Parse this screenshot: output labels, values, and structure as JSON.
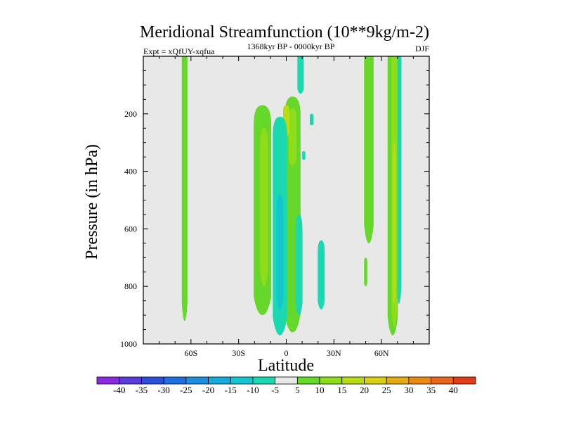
{
  "chart_data": {
    "type": "contour",
    "title": "Meridional Streamfunction (10**9kg/m-2)",
    "subtitle_left": "Expt = xQfUY-xqfua",
    "subtitle_center": "1368kyr BP - 0000kyr BP",
    "subtitle_right": "DJF",
    "xlabel": "Latitude",
    "ylabel": "Pressure (in hPa)",
    "xlim": [
      -90,
      90
    ],
    "ylim": [
      1000,
      0
    ],
    "x_ticks": [
      {
        "value": -60,
        "label": "60S"
      },
      {
        "value": -30,
        "label": "30S"
      },
      {
        "value": 0,
        "label": "0"
      },
      {
        "value": 30,
        "label": "30N"
      },
      {
        "value": 60,
        "label": "60N"
      }
    ],
    "y_ticks": [
      {
        "value": 200,
        "label": "200"
      },
      {
        "value": 400,
        "label": "400"
      },
      {
        "value": 600,
        "label": "600"
      },
      {
        "value": 800,
        "label": "800"
      },
      {
        "value": 1000,
        "label": "1000"
      }
    ],
    "levels": [
      "-40",
      "-35",
      "-30",
      "-25",
      "-20",
      "-15",
      "-10",
      "-5",
      "5",
      "10",
      "15",
      "20",
      "25",
      "30",
      "35",
      "40"
    ],
    "colors": [
      "#8a2be2",
      "#5a3ad8",
      "#2b4fd8",
      "#1f6fe0",
      "#1c8fe2",
      "#16a9db",
      "#12c6cf",
      "#1ad8b0",
      "#e8e8e8",
      "#66d82a",
      "#8fdc1a",
      "#b8dc14",
      "#d9d012",
      "#e4ab12",
      "#e88a12",
      "#e8661a",
      "#e03c1c"
    ],
    "background": "#e8e8e8",
    "features": [
      {
        "x": -64,
        "half_width": 1.8,
        "p_top": 0,
        "p_bot": 920,
        "value": 7
      },
      {
        "x": -15,
        "half_width": 5.5,
        "p_top": 170,
        "p_bot": 900,
        "value": 7
      },
      {
        "x": -14,
        "half_width": 2.5,
        "p_top": 250,
        "p_bot": 800,
        "value": 12
      },
      {
        "x": 4,
        "half_width": 5,
        "p_top": 140,
        "p_bot": 960,
        "value": 7
      },
      {
        "x": 4,
        "half_width": 2.5,
        "p_top": 180,
        "p_bot": 380,
        "value": 12
      },
      {
        "x": 0,
        "half_width": 2,
        "p_top": 170,
        "p_bot": 280,
        "value": 16
      },
      {
        "x": -4,
        "half_width": 4.5,
        "p_top": 210,
        "p_bot": 970,
        "value": -7
      },
      {
        "x": -4,
        "half_width": 2.2,
        "p_top": 480,
        "p_bot": 880,
        "value": -12
      },
      {
        "x": 9,
        "half_width": 2,
        "p_top": 0,
        "p_bot": 130,
        "value": -7
      },
      {
        "x": 8,
        "half_width": 2.2,
        "p_top": 550,
        "p_bot": 900,
        "value": -7
      },
      {
        "x": 22,
        "half_width": 2.2,
        "p_top": 640,
        "p_bot": 880,
        "value": -7
      },
      {
        "x": 16,
        "half_width": 1.2,
        "p_top": 200,
        "p_bot": 240,
        "value": -7
      },
      {
        "x": 11,
        "half_width": 1,
        "p_top": 330,
        "p_bot": 360,
        "value": -7
      },
      {
        "x": 52,
        "half_width": 3,
        "p_top": 0,
        "p_bot": 650,
        "value": 7
      },
      {
        "x": 50,
        "half_width": 1,
        "p_top": 700,
        "p_bot": 800,
        "value": 7
      },
      {
        "x": 71,
        "half_width": 1.5,
        "p_top": 0,
        "p_bot": 860,
        "value": -7
      },
      {
        "x": 67,
        "half_width": 3.2,
        "p_top": 0,
        "p_bot": 970,
        "value": 7
      },
      {
        "x": 68,
        "half_width": 1.8,
        "p_top": 0,
        "p_bot": 940,
        "value": 12
      },
      {
        "x": 68,
        "half_width": 1,
        "p_top": 300,
        "p_bot": 860,
        "value": 17
      }
    ]
  }
}
